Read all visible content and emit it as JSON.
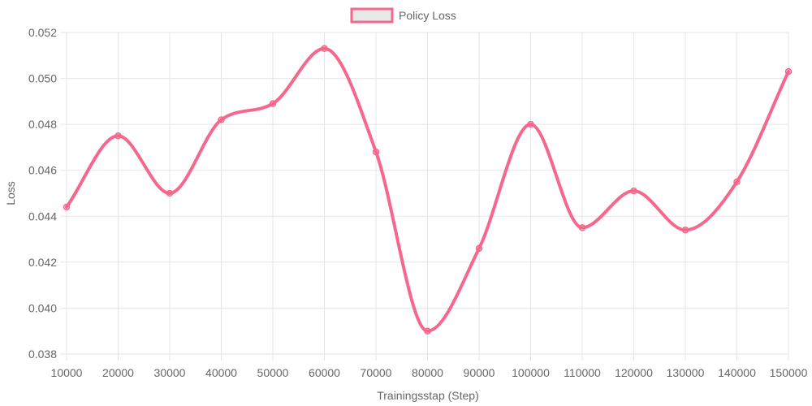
{
  "chart_data": {
    "type": "line",
    "title": "",
    "xlabel": "Trainingsstap (Step)",
    "ylabel": "Loss",
    "x": [
      10000,
      20000,
      30000,
      40000,
      50000,
      60000,
      70000,
      80000,
      90000,
      100000,
      110000,
      120000,
      130000,
      140000,
      150000
    ],
    "x_tick_labels": [
      "10000",
      "20000",
      "30000",
      "40000",
      "50000",
      "60000",
      "70000",
      "80000",
      "90000",
      "100000",
      "110000",
      "120000",
      "130000",
      "140000",
      "150000"
    ],
    "ylim": [
      0.038,
      0.052
    ],
    "y_ticks": [
      0.038,
      0.04,
      0.042,
      0.044,
      0.046,
      0.048,
      0.05,
      0.052
    ],
    "y_tick_labels": [
      "0.038",
      "0.040",
      "0.042",
      "0.044",
      "0.046",
      "0.048",
      "0.050",
      "0.052"
    ],
    "grid": true,
    "legend_position": "top-center",
    "series": [
      {
        "name": "Policy Loss",
        "color": "#f5678d",
        "fill": "#e8e8e8",
        "values": [
          0.0444,
          0.0475,
          0.045,
          0.0482,
          0.0489,
          0.0513,
          0.0468,
          0.039,
          0.0426,
          0.048,
          0.0435,
          0.0451,
          0.0434,
          0.0455,
          0.0503
        ]
      }
    ],
    "colors": {
      "grid": "#e5e5e5",
      "text": "#666666"
    }
  }
}
